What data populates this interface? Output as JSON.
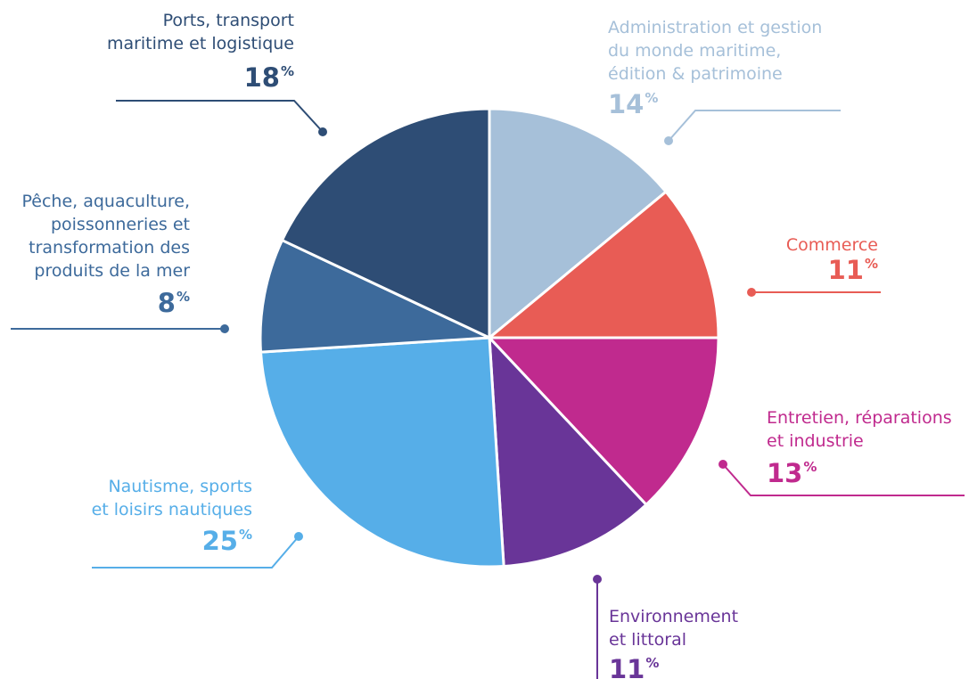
{
  "chart_data": {
    "type": "pie",
    "categories": [
      "Administration et gestion\ndu monde maritime,\nédition & patrimoine",
      "Commerce",
      "Entretien, réparations\net industrie",
      "Environnement\net littoral",
      "Nautisme, sports\net loisirs nautiques",
      "Pêche, aquaculture,\npoissonneries et\ntransformation des\nproduits de la mer",
      "Ports, transport\nmaritime et logistique"
    ],
    "values": [
      14,
      11,
      13,
      11,
      25,
      8,
      18
    ],
    "unit": "%",
    "colors": [
      "#a6c0d9",
      "#e85c55",
      "#c02a8e",
      "#693598",
      "#56aee8",
      "#3d6a9b",
      "#2e4d75"
    ]
  }
}
